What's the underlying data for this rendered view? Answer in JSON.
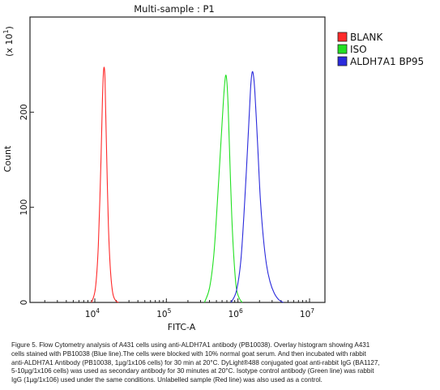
{
  "chart_data": {
    "type": "line",
    "title": "Multi-sample : P1",
    "xlabel": "FITC-A",
    "ylabel": "Count",
    "y_multiplier_label": "(x 10",
    "y_multiplier_exp": "1",
    "y_multiplier_close": ")",
    "x_scale": "log",
    "xlim": [
      10000,
      10000000
    ],
    "x_ticks": [
      {
        "base": "10",
        "exp": "4"
      },
      {
        "base": "10",
        "exp": "5"
      },
      {
        "base": "10",
        "exp": "6"
      },
      {
        "base": "10",
        "exp": "7"
      }
    ],
    "ylim": [
      0,
      300
    ],
    "y_ticks": [
      "0",
      "100",
      "200"
    ],
    "y_tick_values": [
      0,
      100,
      200
    ],
    "grid": false,
    "legend_position": "top-right",
    "series": [
      {
        "name": "BLANK",
        "color": "#ff2a2a",
        "x": [
          9000,
          10200,
          11200,
          12200,
          12800,
          13300,
          13800,
          14200,
          14800,
          15500,
          16500,
          17800,
          19500,
          21500
        ],
        "y": [
          0,
          15,
          60,
          150,
          215,
          245,
          240,
          200,
          140,
          80,
          35,
          10,
          2,
          0
        ]
      },
      {
        "name": "ISO",
        "color": "#22e022",
        "x": [
          340000,
          400000,
          460000,
          520000,
          580000,
          630000,
          670000,
          700000,
          730000,
          770000,
          820000,
          880000,
          950000,
          1050000,
          1150000
        ],
        "y": [
          0,
          15,
          50,
          110,
          170,
          215,
          238,
          232,
          205,
          150,
          90,
          45,
          15,
          4,
          0
        ]
      },
      {
        "name": "ALDH7A1 BP95",
        "color": "#2a2adc",
        "x": [
          800000,
          950000,
          1100000,
          1250000,
          1400000,
          1500000,
          1580000,
          1650000,
          1720000,
          1800000,
          1900000,
          2050000,
          2250000,
          2500000,
          2800000,
          3200000,
          3700000,
          4300000
        ],
        "y": [
          0,
          12,
          45,
          110,
          180,
          225,
          242,
          238,
          222,
          195,
          160,
          110,
          70,
          40,
          22,
          10,
          3,
          0
        ]
      }
    ]
  },
  "caption": {
    "line1": "Figure 5. Flow Cytometry analysis of A431 cells using anti-ALDH7A1 antibody (PB10038).  Overlay histogram showing A431",
    "line2": "cells stained with PB10038 (Blue line).The cells were blocked with 10% normal goat serum. And then incubated with rabbit",
    "line3": "anti-ALDH7A1 Antibody (PB10038, 1µg/1x106 cells) for 30 min at 20°C. DyLight®488 conjugated goat anti-rabbit IgG (BA1127,",
    "line4": "5-10µg/1x106 cells) was used as secondary antibody for 30 minutes at 20°C. Isotype control antibody (Green line) was rabbit",
    "line5": "IgG (1µg/1x106) used under the same conditions. Unlabelled sample (Red line) was also used as a control."
  }
}
